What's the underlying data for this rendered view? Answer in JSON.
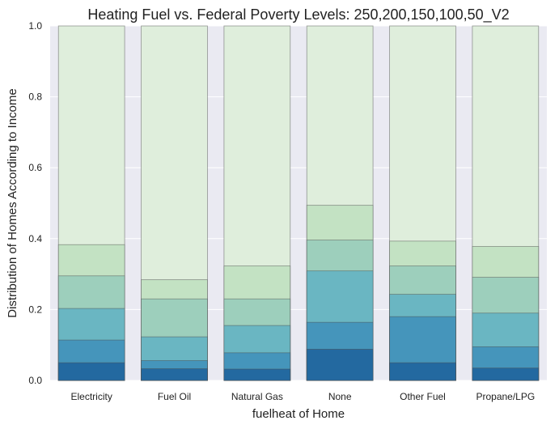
{
  "chart_data": {
    "type": "bar",
    "stacked": true,
    "title": "Heating Fuel vs. Federal Poverty Levels: 250,200,150,100,50_V2",
    "xlabel": "fuelheat of Home",
    "ylabel": "Distribution of Homes According to Income",
    "ylim": [
      0,
      1.0
    ],
    "yticks": [
      "0.0",
      "0.2",
      "0.4",
      "0.6",
      "0.8",
      "1.0"
    ],
    "categories": [
      "Electricity",
      "Fuel Oil",
      "Natural Gas",
      "None",
      "Other Fuel",
      "Propane/LPG"
    ],
    "cumulative_levels": [
      {
        "values": [
          1.0,
          1.0,
          1.0,
          1.0,
          1.0,
          1.0
        ],
        "color": "#dfeedc"
      },
      {
        "values": [
          0.383,
          0.284,
          0.323,
          0.494,
          0.393,
          0.378
        ],
        "color": "#c3e2c3"
      },
      {
        "values": [
          0.295,
          0.23,
          0.23,
          0.396,
          0.323,
          0.291
        ],
        "color": "#9dcfbc"
      },
      {
        "values": [
          0.203,
          0.123,
          0.155,
          0.309,
          0.243,
          0.19
        ],
        "color": "#6ab6c2"
      },
      {
        "values": [
          0.114,
          0.056,
          0.078,
          0.164,
          0.18,
          0.095
        ],
        "color": "#4595bb"
      },
      {
        "values": [
          0.05,
          0.033,
          0.032,
          0.088,
          0.05,
          0.035
        ],
        "color": "#2369a0"
      }
    ],
    "grid": true,
    "background": "#eaeaf2"
  }
}
